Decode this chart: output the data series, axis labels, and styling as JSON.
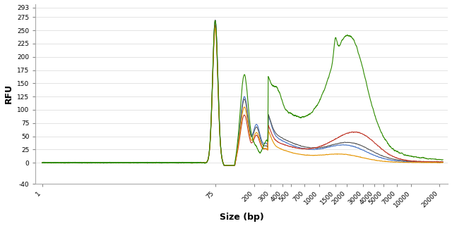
{
  "title": "",
  "xlabel": "Size (bp)",
  "ylabel": "RFU",
  "yticks": [
    293,
    275,
    250,
    225,
    200,
    175,
    150,
    125,
    100,
    75,
    50,
    25,
    0,
    -40
  ],
  "ylim": [
    -40,
    300
  ],
  "xtick_labels": [
    "1",
    "75",
    "200",
    "300",
    "400",
    "500",
    "700",
    "1000",
    "1500",
    "2000",
    "3000",
    "4000",
    "5000",
    "7000",
    "10000",
    "20000"
  ],
  "xtick_positions": [
    1,
    75,
    200,
    300,
    400,
    500,
    700,
    1000,
    1500,
    2000,
    3000,
    4000,
    5000,
    7000,
    10000,
    20000
  ],
  "background_color": "#ffffff",
  "line_colors": [
    "#4472c4",
    "#595959",
    "#c0392b",
    "#e59400",
    "#2e8b00"
  ],
  "figsize": [
    6.4,
    3.21
  ],
  "dpi": 100
}
